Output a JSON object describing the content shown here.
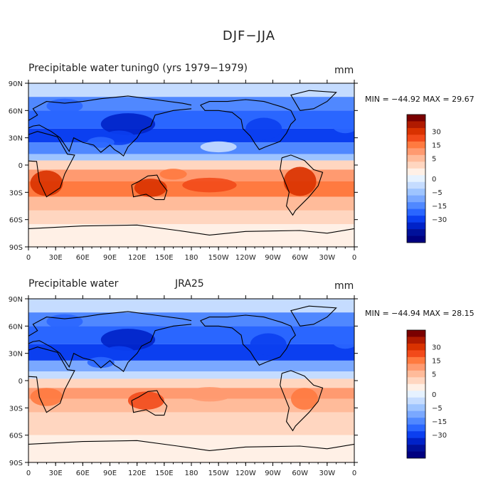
{
  "title": "DJF−JJA",
  "panels": [
    {
      "var_title": "Precipitable water",
      "source_title": "tuning0 (yrs 1979−1979)",
      "units": "mm",
      "stats": "MIN = −44.92  MAX =  29.67",
      "min": -44.92,
      "max": 29.67
    },
    {
      "var_title": "Precipitable water",
      "source_title": "JRA25",
      "units": "mm",
      "stats": "MIN = −44.94  MAX =  28.15",
      "min": -44.94,
      "max": 28.15
    }
  ],
  "chart_data": {
    "type": "map",
    "x_ticks": [
      "0",
      "30E",
      "60E",
      "90E",
      "120E",
      "150E",
      "180",
      "150W",
      "120W",
      "90W",
      "60W",
      "30W",
      "0"
    ],
    "y_ticks": [
      "90N",
      "60N",
      "30N",
      "0",
      "30S",
      "60S",
      "90S"
    ],
    "colorbar": {
      "labels": [
        "30",
        "15",
        "5",
        "0",
        "−5",
        "−15",
        "−30"
      ],
      "colors": [
        "#7a0000",
        "#b01a00",
        "#d93200",
        "#f24a1a",
        "#ff7a40",
        "#ff9a70",
        "#ffbb9a",
        "#ffd6c0",
        "#fff0e6",
        "#e6f2ff",
        "#c5dcff",
        "#9ec4ff",
        "#7aa8ff",
        "#5088ff",
        "#2a66ff",
        "#0b3ff0",
        "#0022c8",
        "#00109a",
        "#000080"
      ]
    }
  }
}
